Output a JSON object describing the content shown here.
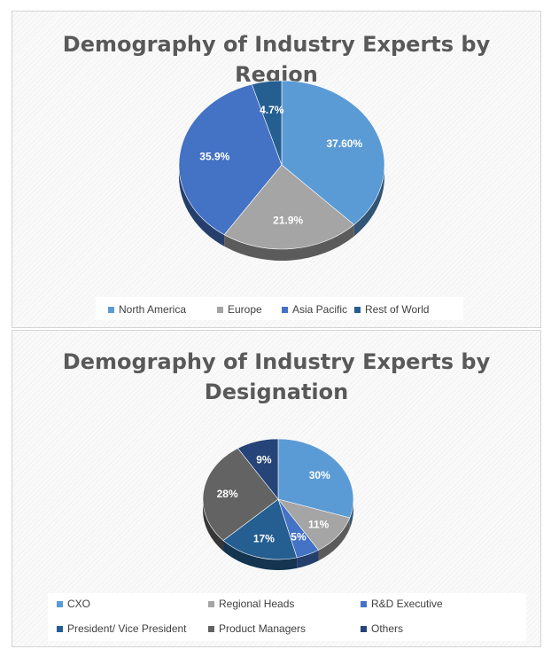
{
  "chart_data": [
    {
      "type": "pie",
      "title": "Demography of Industry Experts by Region",
      "title_lines": [
        "Demography of Industry Experts by",
        "Region"
      ],
      "categories": [
        "North America",
        "Europe",
        "Asia Pacific",
        "Rest of World"
      ],
      "values": [
        37.6,
        21.9,
        35.9,
        4.7
      ],
      "data_labels": [
        "37.60%",
        "21.9%",
        "35.9%",
        "4.7%"
      ],
      "colors": [
        "#5b9bd5",
        "#a5a5a5",
        "#4472c4",
        "#255e91"
      ],
      "legend_position": "bottom",
      "style": "3d"
    },
    {
      "type": "pie",
      "title": "Demography of Industry Experts by Designation",
      "title_lines": [
        "Demography of Industry Experts by",
        "Designation"
      ],
      "categories": [
        "CXO",
        "Regional Heads",
        "R&D Executive",
        "President/ Vice President",
        "Product Managers",
        "Others"
      ],
      "values": [
        30,
        11,
        5,
        17,
        28,
        9
      ],
      "data_labels": [
        "30%",
        "11%",
        "5%",
        "17%",
        "28%",
        "9%"
      ],
      "colors": [
        "#5b9bd5",
        "#a5a5a5",
        "#4472c4",
        "#255e91",
        "#636363",
        "#264478"
      ],
      "legend_position": "bottom",
      "style": "3d"
    }
  ]
}
